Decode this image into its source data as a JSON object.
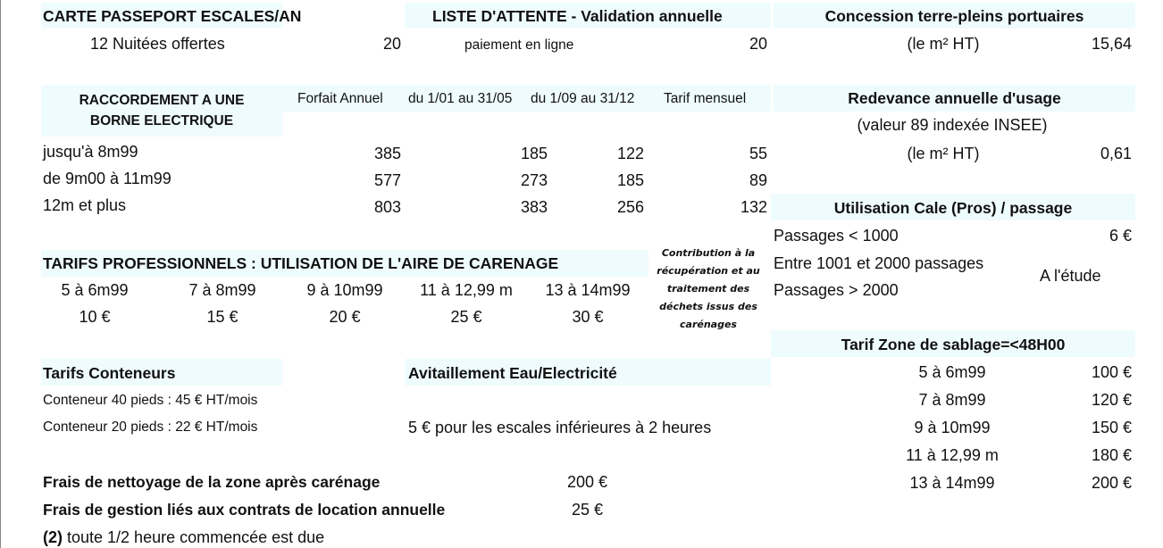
{
  "passeport": {
    "title": "CARTE PASSEPORT ESCALES/AN",
    "label": "12 Nuitées offertes",
    "value": "20"
  },
  "attente": {
    "title": "LISTE D'ATTENTE - Validation annuelle",
    "label": "paiement en ligne",
    "value": "20"
  },
  "concession": {
    "title": "Concession terre-pleins portuaires",
    "label": "(le m² HT)",
    "value": "15,64"
  },
  "raccordement": {
    "title_line1": "RACCORDEMENT A UNE",
    "title_line2": "BORNE ELECTRIQUE",
    "columns": [
      "Forfait Annuel",
      "du 1/01 au 31/05",
      "du 1/09 au 31/12",
      "Tarif mensuel"
    ],
    "rows": [
      {
        "label": "jusqu'à 8m99",
        "values": [
          "385",
          "185",
          "122",
          "55"
        ]
      },
      {
        "label": "de 9m00 à 11m99",
        "values": [
          "577",
          "273",
          "185",
          "89"
        ]
      },
      {
        "label": "12m et plus",
        "values": [
          "803",
          "383",
          "256",
          "132"
        ]
      }
    ]
  },
  "redevance": {
    "title": "Redevance annuelle d'usage",
    "subtitle": "(valeur 89 indexée INSEE)",
    "label": "(le m² HT)",
    "value": "0,61"
  },
  "cale": {
    "title": "Utilisation Cale (Pros) / passage",
    "rows": [
      "Passages < 1000",
      "Entre 1001 et 2000 passages",
      "Passages > 2000"
    ],
    "first_value": "6 €",
    "study": "A l'étude"
  },
  "carenage": {
    "title": "TARIFS PROFESSIONNELS : UTILISATION DE L'AIRE DE CARENAGE",
    "sizes": [
      "5 à 6m99",
      "7 à 8m99",
      "9 à 10m99",
      "11 à 12,99 m",
      "13 à 14m99"
    ],
    "prices": [
      "10 €",
      "15 €",
      "20 €",
      "25 €",
      "30 €"
    ],
    "note": [
      "Contribution à la",
      "récupération et au",
      "traitement des",
      "déchets issus des",
      "carénages"
    ]
  },
  "sablage": {
    "title": "Tarif Zone de sablage=<48H00",
    "rows": [
      {
        "size": "5 à 6m99",
        "price": "100 €"
      },
      {
        "size": "7 à 8m99",
        "price": "120 €"
      },
      {
        "size": "9 à 10m99",
        "price": "150 €"
      },
      {
        "size": "11 à 12,99 m",
        "price": "180 €"
      },
      {
        "size": "13 à 14m99",
        "price": "200 €"
      }
    ]
  },
  "conteneurs": {
    "title": "Tarifs Conteneurs",
    "rows": [
      "Conteneur 40 pieds : 45 € HT/mois",
      "Conteneur 20 pieds : 22 € HT/mois"
    ]
  },
  "avitaillement": {
    "title": "Avitaillement Eau/Electricité",
    "text": "5 € pour les escales inférieures à 2 heures"
  },
  "frais": [
    {
      "label": "Frais de nettoyage de la zone après carénage",
      "value": "200 €"
    },
    {
      "label": "Frais de gestion liés aux contrats de location annuelle",
      "value": "25 €"
    }
  ],
  "footnote": {
    "mark": "(2)",
    "text": " toute 1/2 heure commencée est due"
  },
  "colors": {
    "band": "#effcfd"
  }
}
